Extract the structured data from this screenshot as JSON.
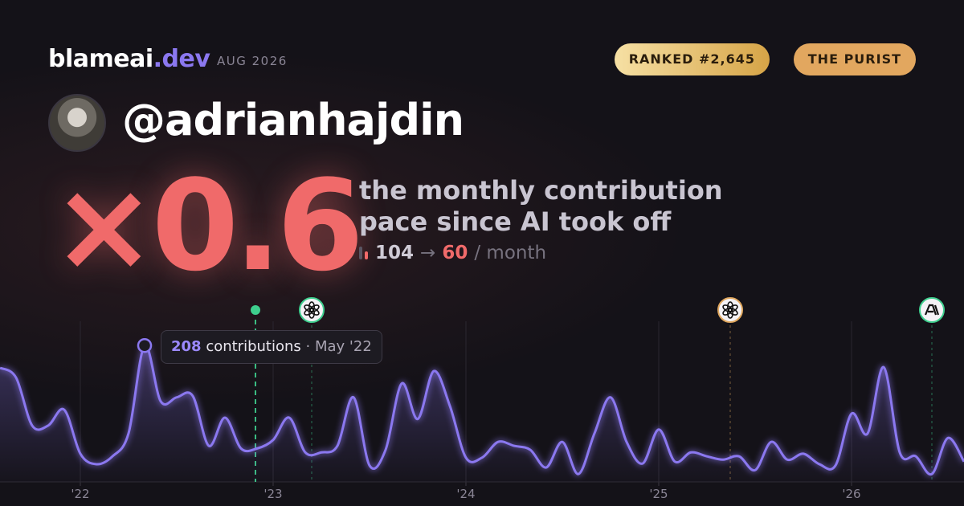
{
  "header": {
    "brand": "blameai",
    "brand_suffix": ".dev",
    "period": "AUG 2026",
    "badges": [
      "RANKED #2,645",
      "THE PURIST"
    ]
  },
  "profile": {
    "handle": "@adrianhajdin"
  },
  "stat": {
    "multiplier": "×0.6",
    "lines": [
      "the monthly contribution",
      "pace since AI took off"
    ],
    "before": 104,
    "arrow": "→",
    "after": 60,
    "unit": "/ month"
  },
  "chart_data": {
    "type": "line",
    "color": "#8b78f0",
    "x": [
      0,
      1,
      2,
      3,
      4,
      5,
      6,
      7,
      8,
      9,
      10,
      11,
      12,
      13,
      14,
      15,
      16,
      17,
      18,
      19,
      20,
      21,
      22,
      23,
      24,
      25,
      26,
      27,
      28,
      29,
      30,
      31,
      32,
      33,
      34,
      35,
      36,
      37,
      38,
      39,
      40,
      41,
      42,
      43,
      44,
      45,
      46,
      47,
      48,
      49,
      50,
      51,
      52,
      53,
      54,
      55,
      56,
      57,
      58,
      59,
      60
    ],
    "values": [
      174,
      159,
      86,
      86,
      110,
      43,
      27,
      39,
      74,
      208,
      123,
      129,
      131,
      55,
      98,
      51,
      51,
      64,
      98,
      45,
      45,
      55,
      129,
      25,
      49,
      150,
      96,
      169,
      116,
      37,
      37,
      61,
      55,
      49,
      22,
      61,
      12,
      74,
      129,
      61,
      28,
      80,
      31,
      45,
      39,
      34,
      39,
      18,
      61,
      34,
      43,
      27,
      25,
      104,
      74,
      175,
      45,
      39,
      12,
      67,
      31
    ],
    "xlim": [
      0,
      60
    ],
    "ylim": [
      0,
      245
    ],
    "xticks": [
      {
        "value": 5,
        "label": "'22"
      },
      {
        "value": 17,
        "label": "'23"
      },
      {
        "value": 29,
        "label": "'24"
      },
      {
        "value": 41,
        "label": "'25"
      },
      {
        "value": 53,
        "label": "'26"
      }
    ],
    "grid": true,
    "events": [
      {
        "x": 15.9,
        "icon": "dot",
        "color": "#3ecf8e"
      },
      {
        "x": 19.4,
        "icon": "openai",
        "color": "#3ecf8e"
      },
      {
        "x": 45.45,
        "icon": "openai",
        "color": "#e0a75e"
      },
      {
        "x": 58,
        "icon": "anthropic",
        "color": "#3ecf8e"
      }
    ],
    "tooltip": {
      "index": 9,
      "label": "contributions",
      "separator": "·",
      "date": "May '22"
    }
  }
}
